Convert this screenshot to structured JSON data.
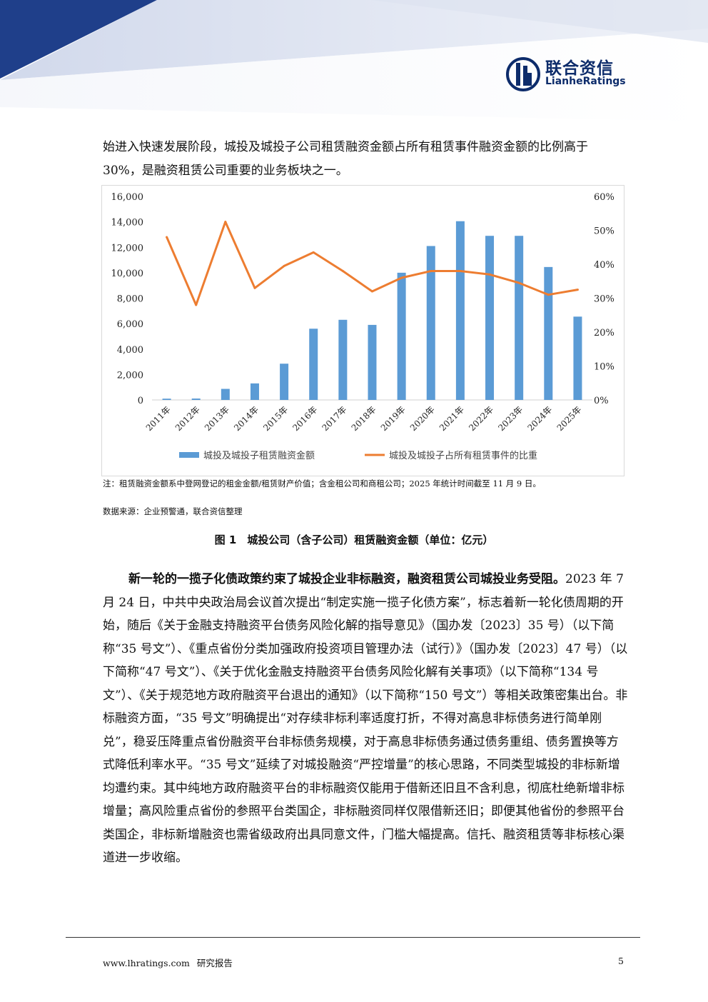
{
  "header": {
    "logo_cn": "联合资信",
    "logo_en": "LianheRatings"
  },
  "intro_text": "始进入快速发展阶段，城投及城投子公司租赁融资金额占所有租赁事件融资金额的比例高于 30%，是融资租赁公司重要的业务板块之一。",
  "chart_data": {
    "type": "bar",
    "categories": [
      "2011年",
      "2012年",
      "2013年",
      "2014年",
      "2015年",
      "2016年",
      "2017年",
      "2018年",
      "2019年",
      "2020年",
      "2021年",
      "2022年",
      "2023年",
      "2024年",
      "2025年"
    ],
    "series": [
      {
        "name": "城投及城投子租赁融资金额",
        "type": "bar",
        "axis": "left",
        "color": "#5b9bd5",
        "values": [
          100,
          110,
          870,
          1300,
          2850,
          5600,
          6300,
          5900,
          10000,
          12100,
          14050,
          12900,
          12900,
          10450,
          6550
        ]
      },
      {
        "name": "城投及城投子占所有租赁事件的比重",
        "type": "line",
        "axis": "right",
        "color": "#ed7d31",
        "values": [
          48,
          28,
          52.5,
          33,
          39.5,
          43.5,
          38,
          32,
          36,
          38,
          38,
          37,
          34.5,
          31,
          32.5
        ]
      }
    ],
    "ylim_left": [
      0,
      16000
    ],
    "yticks_left": [
      "0",
      "2,000",
      "4,000",
      "6,000",
      "8,000",
      "10,000",
      "12,000",
      "14,000",
      "16,000"
    ],
    "ylim_right": [
      0,
      60
    ],
    "yticks_right": [
      "0%",
      "10%",
      "20%",
      "30%",
      "40%",
      "50%",
      "60%"
    ],
    "legend_position": "bottom",
    "grid": false
  },
  "chart_note": "注：租赁融资金额系中登网登记的租金金额/租赁财产价值；含金租公司和商租公司；2025 年统计时间截至 11 月 9 日。",
  "chart_source": "数据来源：企业预警通，联合资信整理",
  "figure_caption": "图 1　城投公司（含子公司）租赁融资金额（单位：亿元）",
  "body": {
    "lead_bold": "新一轮的一揽子化债政策约束了城投企业非标融资，融资租赁公司城投业务受阻。",
    "text": "2023 年 7 月 24 日，中共中央政治局会议首次提出“制定实施一揽子化债方案”，标志着新一轮化债周期的开始，随后《关于金融支持融资平台债务风险化解的指导意见》（国办发〔2023〕35 号）（以下简称“35 号文”）、《重点省份分类加强政府投资项目管理办法（试行）》（国办发〔2023〕47 号）（以下简称“47 号文”）、《关于优化金融支持融资平台债务风险化解有关事项》（以下简称“134 号文”）、《关于规范地方政府融资平台退出的通知》（以下简称“150 号文”）等相关政策密集出台。非标融资方面，“35 号文”明确提出“对存续非标利率适度打折，不得对高息非标债务进行简单刚兑”，稳妥压降重点省份融资平台非标债务规模，对于高息非标债务通过债务重组、债务置换等方式降低利率水平。“35 号文”延续了对城投融资“严控增量”的核心思路，不同类型城投的非标新增均遭约束。其中纯地方政府融资平台的非标融资仅能用于借新还旧且不含利息，彻底杜绝新增非标增量；高风险重点省份的参照平台类国企，非标融资同样仅限借新还旧；即便其他省份的参照平台类国企，非标新增融资也需省级政府出具同意文件，门槛大幅提高。信托、融资租赁等非标核心渠道进一步收缩。"
  },
  "footer": {
    "website": "www.lhratings.com",
    "label": "研究报告",
    "page": "5"
  }
}
